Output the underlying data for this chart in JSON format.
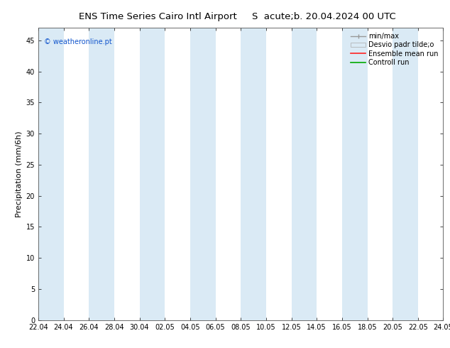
{
  "title_left": "ENS Time Series Cairo Intl Airport",
  "title_right": "S  acute;b. 20.04.2024 00 UTC",
  "ylabel": "Precipitation (mm/6h)",
  "watermark": "© weatheronline.pt",
  "ylim": [
    0,
    47
  ],
  "yticks": [
    0,
    5,
    10,
    15,
    20,
    25,
    30,
    35,
    40,
    45
  ],
  "bg_color": "#ffffff",
  "band_color": "#daeaf5",
  "xtick_labels": [
    "22.04",
    "24.04",
    "26.04",
    "28.04",
    "30.04",
    "02.05",
    "04.05",
    "06.05",
    "08.05",
    "10.05",
    "12.05",
    "14.05",
    "16.05",
    "18.05",
    "20.05",
    "22.05",
    "24.05"
  ],
  "legend_entries": [
    "min/max",
    "Desvio padr tilde;o",
    "Ensemble mean run",
    "Controll run"
  ],
  "title_fontsize": 9.5,
  "ylabel_fontsize": 8,
  "tick_fontsize": 7,
  "watermark_fontsize": 7,
  "legend_fontsize": 7
}
